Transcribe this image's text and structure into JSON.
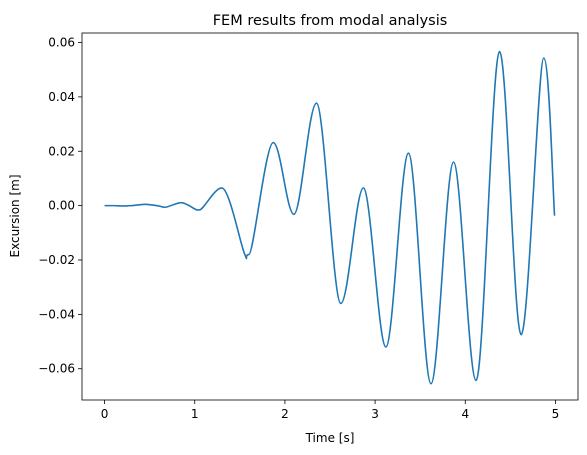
{
  "chart_data": {
    "type": "line",
    "title": "FEM results from modal analysis",
    "xlabel": "Time [s]",
    "ylabel": "Excursion [m]",
    "xlim": [
      -0.25,
      5.25
    ],
    "ylim": [
      -0.0715,
      0.0635
    ],
    "x_ticks": [
      0,
      1,
      2,
      3,
      4,
      5
    ],
    "x_tick_labels": [
      "0",
      "1",
      "2",
      "3",
      "4",
      "5"
    ],
    "y_ticks": [
      -0.06,
      -0.04,
      -0.02,
      0.0,
      0.02,
      0.04,
      0.06
    ],
    "y_tick_labels": [
      "−0.06",
      "−0.04",
      "−0.02",
      "0.00",
      "0.02",
      "0.04",
      "0.06"
    ],
    "grid": false,
    "series": [
      {
        "color": "#1f77b4",
        "x": [
          0.0,
          0.1,
          0.2,
          0.3,
          0.45,
          0.6,
          0.67,
          0.85,
          1.0,
          1.05,
          1.3,
          1.55,
          1.6,
          1.87,
          2.1,
          2.35,
          2.62,
          2.87,
          3.12,
          3.37,
          3.62,
          3.87,
          4.12,
          4.38,
          4.62,
          4.87,
          4.99
        ],
        "y": [
          0.0,
          0.0,
          -0.0001,
          0.0,
          0.0005,
          -0.0001,
          -0.0006,
          0.0011,
          -0.0012,
          -0.0016,
          0.0065,
          -0.0175,
          -0.018,
          0.0232,
          -0.0032,
          0.0377,
          -0.036,
          0.0065,
          -0.052,
          0.0193,
          -0.0655,
          0.016,
          -0.0643,
          0.0567,
          -0.0475,
          0.0543,
          -0.0037
        ]
      }
    ]
  }
}
